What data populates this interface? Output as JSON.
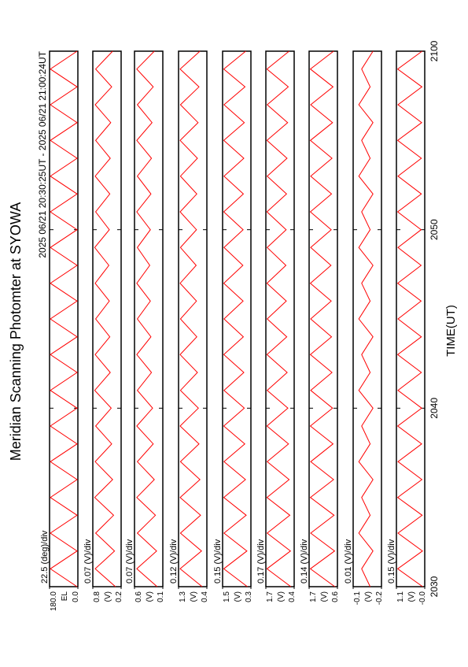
{
  "chart_data": {
    "type": "line",
    "title": "Meridian Scanning Photomter at SYOWA",
    "subtitle": "2025 06/21 20:30:25UT - 2025 06/21 21:00:24UT",
    "xlabel": "TIME(UT)",
    "xlim": [
      30,
      60
    ],
    "xticks": [
      {
        "value": 30,
        "label": "2030"
      },
      {
        "value": 40,
        "label": "2040"
      },
      {
        "value": 50,
        "label": "2050"
      },
      {
        "value": 60,
        "label": "2100"
      }
    ],
    "x": [
      30,
      31,
      32,
      33,
      34,
      35,
      36,
      37,
      38,
      39,
      40,
      41,
      42,
      43,
      44,
      45,
      46,
      47,
      48,
      49,
      50,
      51,
      52,
      53,
      54,
      55,
      56,
      57,
      58,
      59,
      60
    ],
    "series": [
      {
        "name": "22.5 (deg)/div",
        "ylabel": "EL",
        "color": "#ff0000",
        "ylim": [
          0,
          180
        ],
        "yticks": [
          {
            "value": 0,
            "label": "0.0"
          },
          {
            "value": 180,
            "label": "180.0"
          }
        ],
        "values": [
          5,
          175,
          5,
          175,
          5,
          175,
          5,
          175,
          5,
          175,
          5,
          175,
          5,
          175,
          5,
          175,
          5,
          175,
          5,
          175,
          5,
          175,
          5,
          175,
          5,
          175,
          5,
          175,
          5,
          175,
          5
        ]
      },
      {
        "name": "0.07 (V)/div",
        "ylabel": "(V)",
        "color": "#ff0000",
        "ylim": [
          0.2,
          0.8
        ],
        "yticks": [
          0.2,
          0.8
        ],
        "values": [
          0.32,
          0.75,
          0.34,
          0.74,
          0.36,
          0.76,
          0.38,
          0.75,
          0.4,
          0.74,
          0.41,
          0.76,
          0.43,
          0.75,
          0.44,
          0.74,
          0.45,
          0.75,
          0.46,
          0.76,
          0.45,
          0.74,
          0.44,
          0.75,
          0.43,
          0.74,
          0.42,
          0.75,
          0.4,
          0.74,
          0.38
        ]
      },
      {
        "name": "0.07 (V)/div",
        "ylabel": "(V)",
        "color": "#ff0000",
        "ylim": [
          0.1,
          0.6
        ],
        "yticks": [
          0.1,
          0.6
        ],
        "values": [
          0.2,
          0.56,
          0.21,
          0.55,
          0.23,
          0.56,
          0.25,
          0.55,
          0.27,
          0.56,
          0.28,
          0.55,
          0.3,
          0.56,
          0.31,
          0.55,
          0.32,
          0.56,
          0.33,
          0.55,
          0.32,
          0.56,
          0.31,
          0.55,
          0.3,
          0.56,
          0.29,
          0.55,
          0.27,
          0.56,
          0.25
        ]
      },
      {
        "name": "0.12 (V)/div",
        "ylabel": "(V)",
        "color": "#ff0000",
        "ylim": [
          0.4,
          1.3
        ],
        "yticks": [
          0.4,
          1.3
        ],
        "values": [
          0.55,
          1.25,
          0.57,
          1.24,
          0.6,
          1.25,
          0.62,
          1.24,
          0.65,
          1.25,
          0.67,
          1.24,
          0.7,
          1.25,
          0.72,
          1.24,
          0.73,
          1.25,
          0.74,
          1.24,
          0.73,
          1.25,
          0.72,
          1.24,
          0.7,
          1.25,
          0.68,
          1.24,
          0.65,
          1.25,
          0.62
        ]
      },
      {
        "name": "0.15 (V)/div",
        "ylabel": "(V)",
        "color": "#ff0000",
        "ylim": [
          0.3,
          1.5
        ],
        "yticks": [
          0.3,
          1.5
        ],
        "values": [
          0.45,
          1.45,
          0.47,
          1.44,
          0.5,
          1.45,
          0.53,
          1.44,
          0.56,
          1.45,
          0.58,
          1.44,
          0.6,
          1.45,
          0.62,
          1.44,
          0.63,
          1.45,
          0.64,
          1.44,
          0.63,
          1.45,
          0.62,
          1.44,
          0.6,
          1.45,
          0.58,
          1.44,
          0.55,
          1.45,
          0.52
        ]
      },
      {
        "name": "0.17 (V)/div",
        "ylabel": "(V)",
        "color": "#ff0000",
        "ylim": [
          0.4,
          1.7
        ],
        "yticks": [
          0.4,
          1.7
        ],
        "values": [
          0.55,
          1.65,
          0.57,
          1.64,
          0.6,
          1.65,
          0.63,
          1.64,
          0.66,
          1.65,
          0.69,
          1.64,
          0.72,
          1.65,
          0.74,
          1.64,
          0.76,
          1.65,
          0.78,
          1.64,
          0.77,
          1.65,
          0.75,
          1.64,
          0.73,
          1.65,
          0.7,
          1.64,
          0.67,
          1.65,
          0.63
        ]
      },
      {
        "name": "0.14 (V)/div",
        "ylabel": "(V)",
        "color": "#ff0000",
        "ylim": [
          0.6,
          1.7
        ],
        "yticks": [
          0.6,
          1.7
        ],
        "values": [
          0.7,
          1.65,
          0.71,
          1.64,
          0.73,
          1.65,
          0.75,
          1.64,
          0.77,
          1.65,
          0.79,
          1.64,
          0.81,
          1.65,
          0.83,
          1.64,
          0.84,
          1.65,
          0.85,
          1.64,
          0.84,
          1.65,
          0.83,
          1.64,
          0.81,
          1.65,
          0.79,
          1.64,
          0.77,
          1.65,
          0.75
        ]
      },
      {
        "name": "0.01 (V)/div",
        "ylabel": "(V)",
        "color": "#ff0000",
        "ylim": [
          -0.2,
          -0.1
        ],
        "yticks": [
          -0.2,
          -0.1
        ],
        "values": [
          -0.16,
          -0.13,
          -0.17,
          -0.12,
          -0.16,
          -0.13,
          -0.17,
          -0.12,
          -0.16,
          -0.13,
          -0.17,
          -0.12,
          -0.16,
          -0.13,
          -0.17,
          -0.12,
          -0.16,
          -0.13,
          -0.17,
          -0.12,
          -0.16,
          -0.13,
          -0.17,
          -0.12,
          -0.16,
          -0.13,
          -0.17,
          -0.12,
          -0.16,
          -0.13,
          -0.17
        ]
      },
      {
        "name": "0.15 (V)/div",
        "ylabel": "(V)",
        "color": "#ff0000",
        "ylim": [
          0,
          1.1
        ],
        "yticks": [
          {
            "value": 0,
            "label": "-0.0"
          },
          1.1
        ],
        "values": [
          0.08,
          1.05,
          0.09,
          1.04,
          0.1,
          1.05,
          0.11,
          1.04,
          0.12,
          1.05,
          0.12,
          1.04,
          0.13,
          1.05,
          0.13,
          1.04,
          0.14,
          1.05,
          0.14,
          1.04,
          0.14,
          1.05,
          0.13,
          1.04,
          0.13,
          1.05,
          0.12,
          1.04,
          0.11,
          1.05,
          0.1
        ]
      }
    ]
  }
}
